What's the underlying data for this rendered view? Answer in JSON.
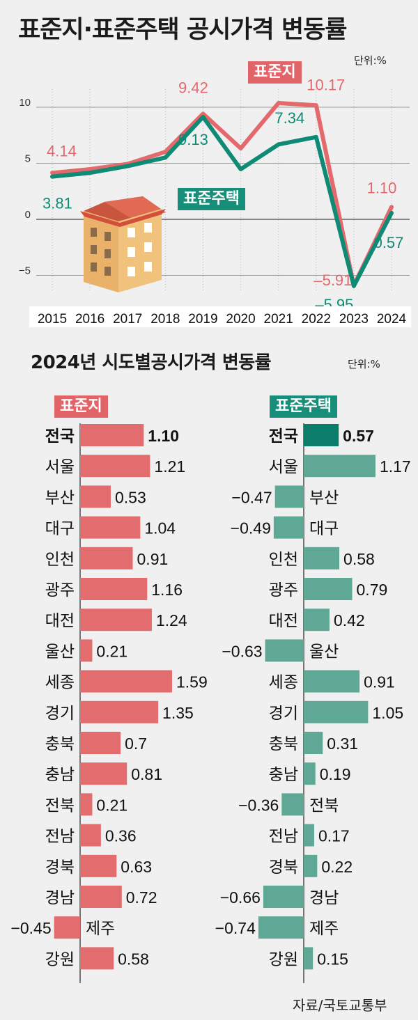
{
  "title": "표준지·표준주택 공시가격 변동률",
  "unit": "단위:%",
  "source": "자료/국토교통부",
  "colors": {
    "land": "#e4696c",
    "land_bar": "#e36c6f",
    "house": "#0f8a74",
    "house_bar": "#5fa896",
    "house_bar_dark": "#0a7d6b",
    "grid": "#9a9a9a"
  },
  "icons": [
    "house-illustration"
  ],
  "chart_data": [
    {
      "type": "line",
      "title": "표준지·표준주택 공시가격 변동률",
      "unit": "단위:%",
      "x": [
        "2015",
        "2016",
        "2017",
        "2018",
        "2019",
        "2020",
        "2021",
        "2022",
        "2023",
        "2024"
      ],
      "ylim": [
        -6.5,
        11
      ],
      "yticks": [
        -5,
        0,
        5,
        10
      ],
      "grid": true,
      "series": [
        {
          "name": "표준지",
          "values": [
            4.14,
            4.47,
            4.94,
            6.02,
            9.42,
            6.33,
            10.37,
            10.17,
            -5.91,
            1.1
          ],
          "labels": {
            "0": "4.14",
            "4": "9.42",
            "7": "10.17",
            "8": "–5.91",
            "9": "1.10"
          }
        },
        {
          "name": "표준주택",
          "values": [
            3.81,
            4.15,
            4.75,
            5.51,
            9.13,
            4.47,
            6.68,
            7.34,
            -5.95,
            0.57
          ],
          "labels": {
            "0": "3.81",
            "4": "9.13",
            "7": "7.34",
            "8": "–5.95",
            "9": "0.57"
          }
        }
      ]
    },
    {
      "type": "bar",
      "title": "2024년 시도별공시가격 변동률",
      "unit": "단위:%",
      "categories": [
        "전국",
        "서울",
        "부산",
        "대구",
        "인천",
        "광주",
        "대전",
        "울산",
        "세종",
        "경기",
        "충북",
        "충남",
        "전북",
        "전남",
        "경북",
        "경남",
        "제주",
        "강원"
      ],
      "series": [
        {
          "name": "표준지",
          "values": [
            1.1,
            1.21,
            0.53,
            1.04,
            0.91,
            1.16,
            1.24,
            0.21,
            1.59,
            1.35,
            0.7,
            0.81,
            0.21,
            0.36,
            0.63,
            0.72,
            -0.45,
            0.58
          ],
          "labels": [
            "1.10",
            "1.21",
            "0.53",
            "1.04",
            "0.91",
            "1.16",
            "1.24",
            "0.21",
            "1.59",
            "1.35",
            "0.7",
            "0.81",
            "0.21",
            "0.36",
            "0.63",
            "0.72",
            "−0.45",
            "0.58"
          ]
        },
        {
          "name": "표준주택",
          "values": [
            0.57,
            1.17,
            -0.47,
            -0.49,
            0.58,
            0.79,
            0.42,
            -0.63,
            0.91,
            1.05,
            0.31,
            0.19,
            -0.36,
            0.17,
            0.22,
            -0.66,
            -0.74,
            0.15
          ],
          "labels": [
            "0.57",
            "1.17",
            "−0.47",
            "−0.49",
            "0.58",
            "0.79",
            "0.42",
            "−0.63",
            "0.91",
            "1.05",
            "0.31",
            "0.19",
            "−0.36",
            "0.17",
            "0.22",
            "−0.66",
            "−0.74",
            "0.15"
          ]
        }
      ]
    }
  ]
}
